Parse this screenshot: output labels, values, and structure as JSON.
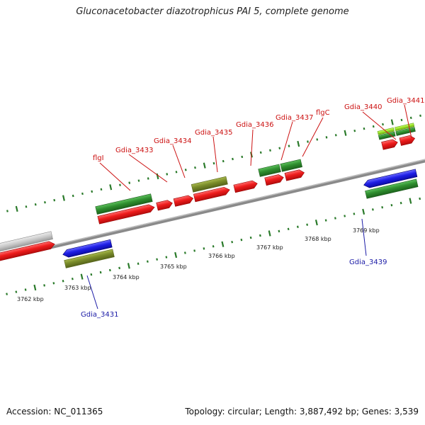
{
  "title": "Gluconacetobacter diazotrophicus PAI 5, complete genome",
  "accession": "Accession: NC_011365",
  "topology": "Topology: circular; Length: 3,887,492 bp; Genes: 3,539",
  "colors": {
    "backbone": "#8a8a8a",
    "cds_forward": "#ee1c1c",
    "cds_reverse": "#1f1fe6",
    "gene_dark_green": "#2f8f2f",
    "gene_olive": "#7a8c2a",
    "gene_light_green": "#9ee62a",
    "gene_gray": "#c8c8c8",
    "tick": "#2a7a2a",
    "label_forward": "#cc1111",
    "label_reverse": "#1a1aa6"
  },
  "kbp_labels": [
    {
      "name": "3762 kbp",
      "text": "3762 kbp"
    },
    {
      "name": "3763 kbp",
      "text": "3763 kbp"
    },
    {
      "name": "3764 kbp",
      "text": "3764 kbp"
    },
    {
      "name": "3765 kbp",
      "text": "3765 kbp"
    },
    {
      "name": "3766 kbp",
      "text": "3766 kbp"
    },
    {
      "name": "3767 kbp",
      "text": "3767 kbp"
    },
    {
      "name": "3768 kbp",
      "text": "3768 kbp"
    },
    {
      "name": "3769 kbp",
      "text": "3769 kbp"
    }
  ],
  "gene_labels_forward": [
    "flgI",
    "Gdia_3433",
    "Gdia_3434",
    "Gdia_3435",
    "Gdia_3436",
    "Gdia_3437",
    "flgC",
    "Gdia_3440",
    "Gdia_3441"
  ],
  "gene_labels_reverse": [
    "Gdia_3431",
    "Gdia_3439"
  ]
}
